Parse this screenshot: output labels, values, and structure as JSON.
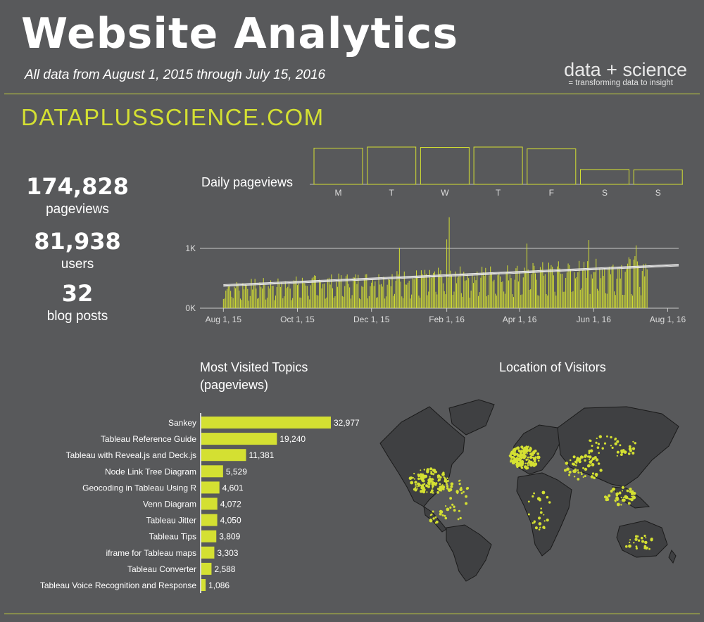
{
  "header": {
    "title": "Website Analytics",
    "subtitle": "All data from August 1, 2015 through July 15, 2016",
    "brand": "data + science",
    "brand_tagline": "= transforming data to insight",
    "site": "DATAPLUSSCIENCE.COM"
  },
  "kpis": [
    {
      "value": "174,828",
      "label": "pageviews"
    },
    {
      "value": "81,938",
      "label": "users"
    },
    {
      "value": "32",
      "label": "blog posts"
    }
  ],
  "colors": {
    "background": "#58595b",
    "accent": "#d4e032",
    "text": "#ffffff"
  },
  "sections": {
    "daily": "Daily pageviews",
    "topics_line1": "Most Visited Topics",
    "topics_line2": "(pageviews)",
    "location": "Location of Visitors"
  },
  "chart_data": [
    {
      "type": "bar",
      "title": "Daily pageviews",
      "categories": [
        "M",
        "T",
        "W",
        "T",
        "F",
        "S",
        "S"
      ],
      "values": [
        1000,
        1030,
        1020,
        1030,
        980,
        410,
        400
      ]
    },
    {
      "type": "bar",
      "y_tick_labels": [
        "0K",
        "1K"
      ],
      "ylim": [
        0,
        1300
      ],
      "x_tick_labels": [
        "Aug 1, 15",
        "Oct 1, 15",
        "Dec 1, 15",
        "Feb 1, 16",
        "Apr 1, 16",
        "Jun 1, 16",
        "Aug 1, 16"
      ],
      "x_range": [
        "2015-07-15",
        "2016-08-10"
      ],
      "series_range": [
        "2015-08-01",
        "2016-07-15"
      ],
      "trend": {
        "start": 380,
        "end": 700
      },
      "note_values_approximate": true
    },
    {
      "type": "bar",
      "title": "Most Visited Topics (pageviews)",
      "categories": [
        "Sankey",
        "Tableau Reference Guide",
        "Tableau with Reveal.js and Deck.js",
        "Node Link Tree Diagram",
        "Geocoding in Tableau Using R",
        "Venn Diagram",
        "Tableau Jitter",
        "Tableau Tips",
        "iframe for Tableau maps",
        "Tableau Converter",
        "Tableau Voice Recognition and Response"
      ],
      "values": [
        32977,
        19240,
        11381,
        5529,
        4601,
        4072,
        4050,
        3809,
        3303,
        2588,
        1086
      ],
      "labels": [
        "32,977",
        "19,240",
        "11,381",
        "5,529",
        "4,601",
        "4,072",
        "4,050",
        "3,809",
        "3,303",
        "2,588",
        "1,086"
      ]
    }
  ]
}
